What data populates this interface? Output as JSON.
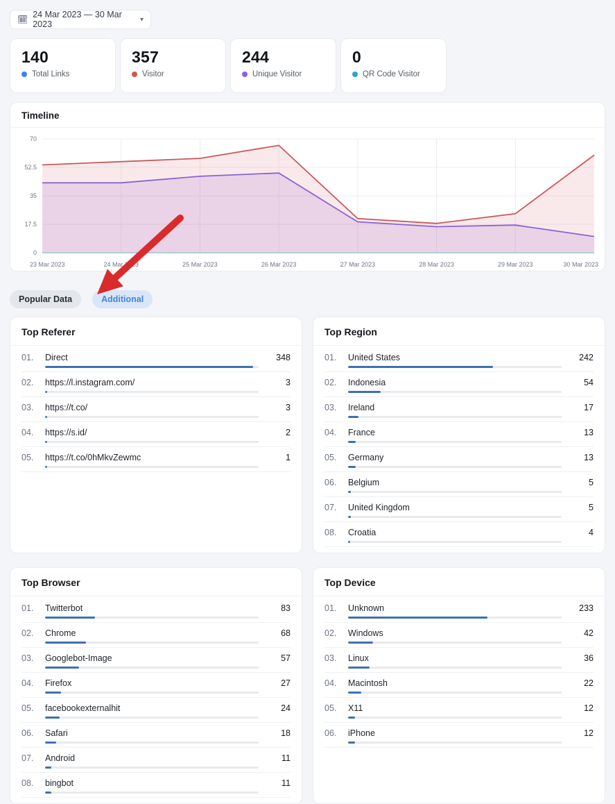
{
  "date_picker": {
    "label": "24 Mar 2023 — 30 Mar 2023"
  },
  "stats": [
    {
      "value": "140",
      "label": "Total Links",
      "color": "#3b82f6"
    },
    {
      "value": "357",
      "label": "Visitor",
      "color": "#d9534f"
    },
    {
      "value": "244",
      "label": "Unique Visitor",
      "color": "#8b5cf6"
    },
    {
      "value": "0",
      "label": "QR Code Visitor",
      "color": "#2aa5c9"
    }
  ],
  "timeline": {
    "title": "Timeline"
  },
  "chart_data": {
    "type": "area",
    "title": "Timeline",
    "x": [
      "23 Mar 2023",
      "24 Mar 2023",
      "25 Mar 2023",
      "26 Mar 2023",
      "27 Mar 2023",
      "28 Mar 2023",
      "29 Mar 2023",
      "30 Mar 2023"
    ],
    "series": [
      {
        "name": "Visitor",
        "color": "#c9595c",
        "fill": "rgba(226,120,132,0.16)",
        "values": [
          54,
          56,
          58,
          66,
          21,
          18,
          24,
          60
        ]
      },
      {
        "name": "Unique Visitor",
        "color": "#8a63d2",
        "fill": "rgba(160,110,215,0.18)",
        "values": [
          43,
          43,
          47,
          49,
          19,
          16,
          17,
          10
        ]
      },
      {
        "name": "QR Code Visitor",
        "color": "#a9c6da",
        "fill": null,
        "values": [
          0,
          0,
          0,
          0,
          0,
          0,
          0,
          0
        ]
      }
    ],
    "yticks": [
      0,
      17.5,
      35,
      52.5,
      70
    ],
    "ylim": [
      0,
      70
    ],
    "grid": true,
    "legend_position": "none"
  },
  "tabs": [
    {
      "label": "Popular Data",
      "active": false,
      "bg": "#e3e6ea",
      "fg": "#2a2f36"
    },
    {
      "label": "Additional",
      "active": true,
      "bg": "#d9e6f8",
      "fg": "#4285d6"
    }
  ],
  "panel_bar_total": 357,
  "panel_bar_color": "#3e70b2",
  "panels": [
    {
      "title": "Top Referer",
      "items": [
        {
          "rank": "01.",
          "label": "Direct",
          "value": 348
        },
        {
          "rank": "02.",
          "label": "https://l.instagram.com/",
          "value": 3
        },
        {
          "rank": "03.",
          "label": "https://t.co/",
          "value": 3
        },
        {
          "rank": "04.",
          "label": "https://s.id/",
          "value": 2
        },
        {
          "rank": "05.",
          "label": "https://t.co/0hMkvZewmc",
          "value": 1
        }
      ]
    },
    {
      "title": "Top Region",
      "items": [
        {
          "rank": "01.",
          "label": "United States",
          "value": 242
        },
        {
          "rank": "02.",
          "label": "Indonesia",
          "value": 54
        },
        {
          "rank": "03.",
          "label": "Ireland",
          "value": 17
        },
        {
          "rank": "04.",
          "label": "France",
          "value": 13
        },
        {
          "rank": "05.",
          "label": "Germany",
          "value": 13
        },
        {
          "rank": "06.",
          "label": "Belgium",
          "value": 5
        },
        {
          "rank": "07.",
          "label": "United Kingdom",
          "value": 5
        },
        {
          "rank": "08.",
          "label": "Croatia",
          "value": 4
        }
      ]
    },
    {
      "title": "Top Browser",
      "items": [
        {
          "rank": "01.",
          "label": "Twitterbot",
          "value": 83
        },
        {
          "rank": "02.",
          "label": "Chrome",
          "value": 68
        },
        {
          "rank": "03.",
          "label": "Googlebot-Image",
          "value": 57
        },
        {
          "rank": "04.",
          "label": "Firefox",
          "value": 27
        },
        {
          "rank": "05.",
          "label": "facebookexternalhit",
          "value": 24
        },
        {
          "rank": "06.",
          "label": "Safari",
          "value": 18
        },
        {
          "rank": "07.",
          "label": "Android",
          "value": 11
        },
        {
          "rank": "08.",
          "label": "bingbot",
          "value": 11
        }
      ]
    },
    {
      "title": "Top Device",
      "items": [
        {
          "rank": "01.",
          "label": "Unknown",
          "value": 233
        },
        {
          "rank": "02.",
          "label": "Windows",
          "value": 42
        },
        {
          "rank": "03.",
          "label": "Linux",
          "value": 36
        },
        {
          "rank": "04.",
          "label": "Macintosh",
          "value": 22
        },
        {
          "rank": "05.",
          "label": "X11",
          "value": 12
        },
        {
          "rank": "06.",
          "label": "iPhone",
          "value": 12
        }
      ]
    }
  ],
  "annotation": {
    "type": "arrow",
    "color": "#d92b2b",
    "target": "Additional tab"
  }
}
